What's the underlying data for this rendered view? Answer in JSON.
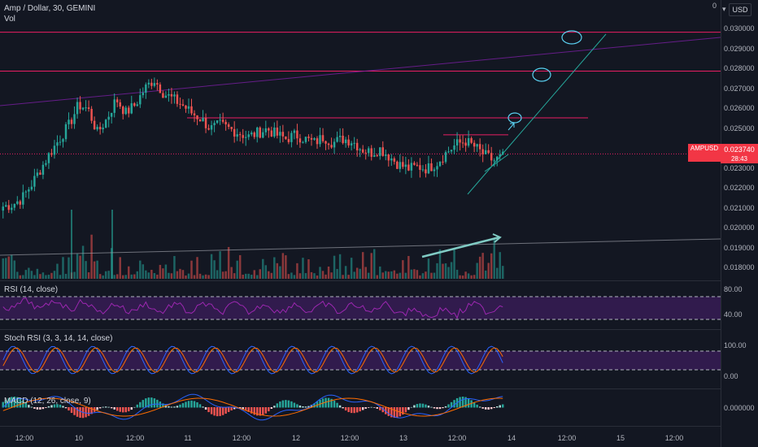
{
  "symbol": {
    "title": "Amp / Dollar, 30, GEMINI",
    "volume_label": "Vol",
    "ticker": "AMPUSD",
    "last_price": "0.023740",
    "countdown": "28:43",
    "currency_button": "USD",
    "scale_indicator": "0"
  },
  "colors": {
    "background": "#131722",
    "up": "#26a69a",
    "down": "#ef5350",
    "level_line": "#e91e63",
    "rsi": "#9c27b0",
    "rsi_band": "#311b4d",
    "drawing": "#26a69a",
    "ellipse": "#5ad1f2",
    "price_badge": "#f23645"
  },
  "price_axis": {
    "labels": [
      "0.030000",
      "0.029000",
      "0.028000",
      "0.027000",
      "0.026000",
      "0.025000",
      "0.024000",
      "0.023000",
      "0.022000",
      "0.021000",
      "0.020000",
      "0.019000",
      "0.018000"
    ],
    "range": [
      0.0175,
      0.0305
    ]
  },
  "horizontal_levels": [
    0.02985,
    0.0279,
    0.02555,
    0.0247
  ],
  "rsi": {
    "label": "RSI (14, close)",
    "levels": [
      "80.00",
      "40.00"
    ],
    "upper_band": 70,
    "lower_band": 30
  },
  "stoch_rsi": {
    "label": "Stoch RSI (3, 3, 14, 14, close)",
    "levels": [
      "100.00",
      "0.00"
    ],
    "upper_band": 80,
    "lower_band": 20
  },
  "macd": {
    "label": "MACD (12, 26, close, 9)",
    "level": "0.000000"
  },
  "time_axis": {
    "labels": [
      "12:00",
      "10",
      "12:00",
      "11",
      "12:00",
      "12",
      "12:00",
      "13",
      "12:00",
      "14",
      "12:00",
      "15",
      "12:00"
    ]
  },
  "chart_data": {
    "type": "candlestick",
    "title": "Amp / Dollar, 30, GEMINI",
    "interval": "30",
    "exchange": "GEMINI",
    "currency": "USD",
    "price_range": [
      0.0175,
      0.0305
    ],
    "last_price": 0.02374,
    "key_price_path": [
      {
        "t": "start",
        "price": 0.0211
      },
      {
        "t": "10",
        "price": 0.0262
      },
      {
        "t": "10 12:00",
        "price": 0.027
      },
      {
        "t": "11",
        "price": 0.0255
      },
      {
        "t": "12",
        "price": 0.0248
      },
      {
        "t": "13",
        "price": 0.023
      },
      {
        "t": "13 12:00",
        "price": 0.0243
      },
      {
        "t": "last",
        "price": 0.02374
      }
    ],
    "indicators": [
      "Vol",
      "RSI (14, close)",
      "Stoch RSI (3, 3, 14, 14, close)",
      "MACD (12, 26, close, 9)"
    ]
  }
}
